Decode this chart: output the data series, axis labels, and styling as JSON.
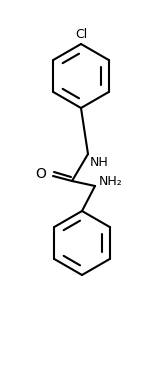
{
  "bg_color": "#ffffff",
  "line_color": "#000000",
  "text_color": "#000000",
  "label_NH": "NH",
  "label_NH2": "NH₂",
  "label_O": "O",
  "label_Cl": "Cl",
  "line_width": 1.5,
  "font_size": 9
}
